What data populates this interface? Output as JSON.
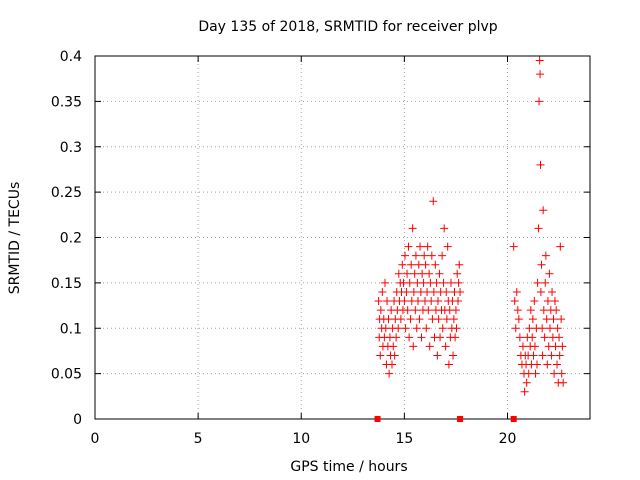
{
  "chart_data": {
    "type": "scatter",
    "title": "Day 135 of 2018, SRMTID for receiver plvp",
    "xlabel": "GPS time / hours",
    "ylabel": "SRMTID / TECUs",
    "xlim": [
      0,
      24
    ],
    "ylim": [
      0,
      0.4
    ],
    "x_ticks": [
      0,
      5,
      10,
      15,
      20
    ],
    "y_ticks": [
      0,
      0.05,
      0.1,
      0.15,
      0.2,
      0.25,
      0.3,
      0.35,
      0.4
    ],
    "grid": true,
    "marker": "plus",
    "color": "#ff0000",
    "zero_markers": [
      13.7,
      17.7,
      20.3
    ],
    "series": [
      {
        "points": [
          [
            13.75,
            0.13
          ],
          [
            13.78,
            0.09
          ],
          [
            13.8,
            0.11
          ],
          [
            13.83,
            0.07
          ],
          [
            13.86,
            0.12
          ],
          [
            13.9,
            0.1
          ],
          [
            13.93,
            0.14
          ],
          [
            13.96,
            0.08
          ],
          [
            14.0,
            0.11
          ],
          [
            14.03,
            0.09
          ],
          [
            14.06,
            0.15
          ],
          [
            14.1,
            0.1
          ],
          [
            14.13,
            0.06
          ],
          [
            14.16,
            0.13
          ],
          [
            14.2,
            0.08
          ],
          [
            14.23,
            0.11
          ],
          [
            14.26,
            0.05
          ],
          [
            14.3,
            0.09
          ],
          [
            14.33,
            0.07
          ],
          [
            14.36,
            0.12
          ],
          [
            14.4,
            0.06
          ],
          [
            14.43,
            0.1
          ],
          [
            14.46,
            0.08
          ],
          [
            14.5,
            0.13
          ],
          [
            14.53,
            0.07
          ],
          [
            14.56,
            0.11
          ],
          [
            14.6,
            0.09
          ],
          [
            14.63,
            0.14
          ],
          [
            14.66,
            0.12
          ],
          [
            14.7,
            0.1
          ],
          [
            14.73,
            0.16
          ],
          [
            14.76,
            0.13
          ],
          [
            14.8,
            0.15
          ],
          [
            14.83,
            0.11
          ],
          [
            14.86,
            0.14
          ],
          [
            14.9,
            0.17
          ],
          [
            14.93,
            0.12
          ],
          [
            14.96,
            0.15
          ],
          [
            15.0,
            0.13
          ],
          [
            15.03,
            0.18
          ],
          [
            15.06,
            0.1
          ],
          [
            15.1,
            0.14
          ],
          [
            15.13,
            0.16
          ],
          [
            15.16,
            0.12
          ],
          [
            15.2,
            0.19
          ],
          [
            15.23,
            0.09
          ],
          [
            15.26,
            0.15
          ],
          [
            15.3,
            0.11
          ],
          [
            15.33,
            0.17
          ],
          [
            15.36,
            0.13
          ],
          [
            15.4,
            0.21
          ],
          [
            15.43,
            0.08
          ],
          [
            15.46,
            0.14
          ],
          [
            15.5,
            0.16
          ],
          [
            15.53,
            0.12
          ],
          [
            15.56,
            0.18
          ],
          [
            15.6,
            0.1
          ],
          [
            15.63,
            0.15
          ],
          [
            15.66,
            0.13
          ],
          [
            15.7,
            0.17
          ],
          [
            15.73,
            0.11
          ],
          [
            15.76,
            0.19
          ],
          [
            15.8,
            0.14
          ],
          [
            15.83,
            0.09
          ],
          [
            15.86,
            0.16
          ],
          [
            15.9,
            0.12
          ],
          [
            15.93,
            0.15
          ],
          [
            15.96,
            0.18
          ],
          [
            16.0,
            0.13
          ],
          [
            16.03,
            0.17
          ],
          [
            16.06,
            0.1
          ],
          [
            16.1,
            0.14
          ],
          [
            16.13,
            0.19
          ],
          [
            16.16,
            0.12
          ],
          [
            16.2,
            0.16
          ],
          [
            16.23,
            0.08
          ],
          [
            16.26,
            0.15
          ],
          [
            16.3,
            0.13
          ],
          [
            16.33,
            0.18
          ],
          [
            16.36,
            0.11
          ],
          [
            16.4,
            0.24
          ],
          [
            16.43,
            0.14
          ],
          [
            16.46,
            0.09
          ],
          [
            16.5,
            0.17
          ],
          [
            16.53,
            0.12
          ],
          [
            16.56,
            0.15
          ],
          [
            16.6,
            0.07
          ],
          [
            16.63,
            0.13
          ],
          [
            16.66,
            0.11
          ],
          [
            16.7,
            0.16
          ],
          [
            16.73,
            0.09
          ],
          [
            16.76,
            0.14
          ],
          [
            16.8,
            0.12
          ],
          [
            16.83,
            0.18
          ],
          [
            16.86,
            0.1
          ],
          [
            16.9,
            0.15
          ],
          [
            16.93,
            0.21
          ],
          [
            16.96,
            0.12
          ],
          [
            17.0,
            0.08
          ],
          [
            17.03,
            0.14
          ],
          [
            17.06,
            0.11
          ],
          [
            17.1,
            0.19
          ],
          [
            17.13,
            0.13
          ],
          [
            17.16,
            0.06
          ],
          [
            17.2,
            0.12
          ],
          [
            17.23,
            0.09
          ],
          [
            17.26,
            0.15
          ],
          [
            17.3,
            0.1
          ],
          [
            17.33,
            0.13
          ],
          [
            17.36,
            0.07
          ],
          [
            17.4,
            0.11
          ],
          [
            17.43,
            0.14
          ],
          [
            17.46,
            0.09
          ],
          [
            17.5,
            0.12
          ],
          [
            17.53,
            0.1
          ],
          [
            17.56,
            0.16
          ],
          [
            17.6,
            0.13
          ],
          [
            17.63,
            0.15
          ],
          [
            17.66,
            0.17
          ],
          [
            17.7,
            0.14
          ],
          [
            20.3,
            0.19
          ],
          [
            20.35,
            0.13
          ],
          [
            20.4,
            0.1
          ],
          [
            20.45,
            0.14
          ],
          [
            20.5,
            0.12
          ],
          [
            20.55,
            0.11
          ],
          [
            20.6,
            0.09
          ],
          [
            20.65,
            0.07
          ],
          [
            20.7,
            0.06
          ],
          [
            20.75,
            0.08
          ],
          [
            20.8,
            0.05
          ],
          [
            20.83,
            0.03
          ],
          [
            20.86,
            0.07
          ],
          [
            20.9,
            0.06
          ],
          [
            20.93,
            0.04
          ],
          [
            20.96,
            0.09
          ],
          [
            21.0,
            0.07
          ],
          [
            21.03,
            0.05
          ],
          [
            21.06,
            0.1
          ],
          [
            21.1,
            0.08
          ],
          [
            21.13,
            0.12
          ],
          [
            21.16,
            0.06
          ],
          [
            21.2,
            0.09
          ],
          [
            21.23,
            0.11
          ],
          [
            21.26,
            0.07
          ],
          [
            21.3,
            0.13
          ],
          [
            21.33,
            0.08
          ],
          [
            21.36,
            0.05
          ],
          [
            21.4,
            0.1
          ],
          [
            21.43,
            0.06
          ],
          [
            21.46,
            0.15
          ],
          [
            21.5,
            0.21
          ],
          [
            21.53,
            0.35
          ],
          [
            21.56,
            0.395
          ],
          [
            21.58,
            0.38
          ],
          [
            21.6,
            0.28
          ],
          [
            21.62,
            0.14
          ],
          [
            21.65,
            0.17
          ],
          [
            21.68,
            0.1
          ],
          [
            21.7,
            0.07
          ],
          [
            21.73,
            0.23
          ],
          [
            21.76,
            0.12
          ],
          [
            21.8,
            0.09
          ],
          [
            21.83,
            0.15
          ],
          [
            21.86,
            0.18
          ],
          [
            21.9,
            0.11
          ],
          [
            21.93,
            0.06
          ],
          [
            21.96,
            0.13
          ],
          [
            22.0,
            0.08
          ],
          [
            22.03,
            0.16
          ],
          [
            22.06,
            0.1
          ],
          [
            22.1,
            0.12
          ],
          [
            22.13,
            0.07
          ],
          [
            22.16,
            0.14
          ],
          [
            22.2,
            0.09
          ],
          [
            22.23,
            0.11
          ],
          [
            22.26,
            0.05
          ],
          [
            22.3,
            0.13
          ],
          [
            22.33,
            0.08
          ],
          [
            22.36,
            0.12
          ],
          [
            22.4,
            0.06
          ],
          [
            22.43,
            0.1
          ],
          [
            22.46,
            0.04
          ],
          [
            22.5,
            0.09
          ],
          [
            22.53,
            0.07
          ],
          [
            22.56,
            0.19
          ],
          [
            22.6,
            0.11
          ],
          [
            22.63,
            0.05
          ],
          [
            22.66,
            0.08
          ],
          [
            22.7,
            0.04
          ]
        ]
      }
    ]
  }
}
